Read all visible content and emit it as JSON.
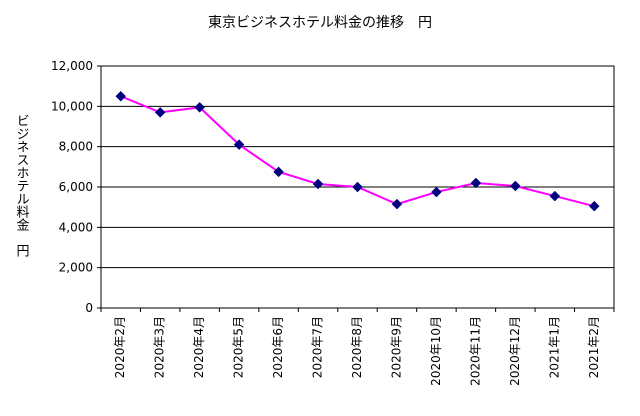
{
  "chart_data": {
    "type": "line",
    "title": "東京ビジネスホテル料金の推移　円",
    "xlabel": "",
    "ylabel": "ビジネスホテル料金　円",
    "categories": [
      "2020年2月",
      "2020年3月",
      "2020年4月",
      "2020年5月",
      "2020年6月",
      "2020年7月",
      "2020年8月",
      "2020年9月",
      "2020年10月",
      "2020年11月",
      "2020年12月",
      "2021年1月",
      "2021年2月"
    ],
    "series": [
      {
        "values": [
          10500,
          9700,
          9950,
          8100,
          6750,
          6150,
          6000,
          5150,
          5750,
          6200,
          6050,
          5550,
          5050
        ]
      }
    ],
    "ylim": [
      0,
      12000
    ],
    "yticks": [
      0,
      2000,
      4000,
      6000,
      8000,
      10000,
      12000
    ],
    "ytick_labels": [
      "0",
      "2,000",
      "4,000",
      "6,000",
      "8,000",
      "10,000",
      "12,000"
    ],
    "grid": true,
    "line_color": "#ff00ff",
    "marker_color": "#000080",
    "plot_background": "#ffffff",
    "outer_background": "#ffffff"
  }
}
